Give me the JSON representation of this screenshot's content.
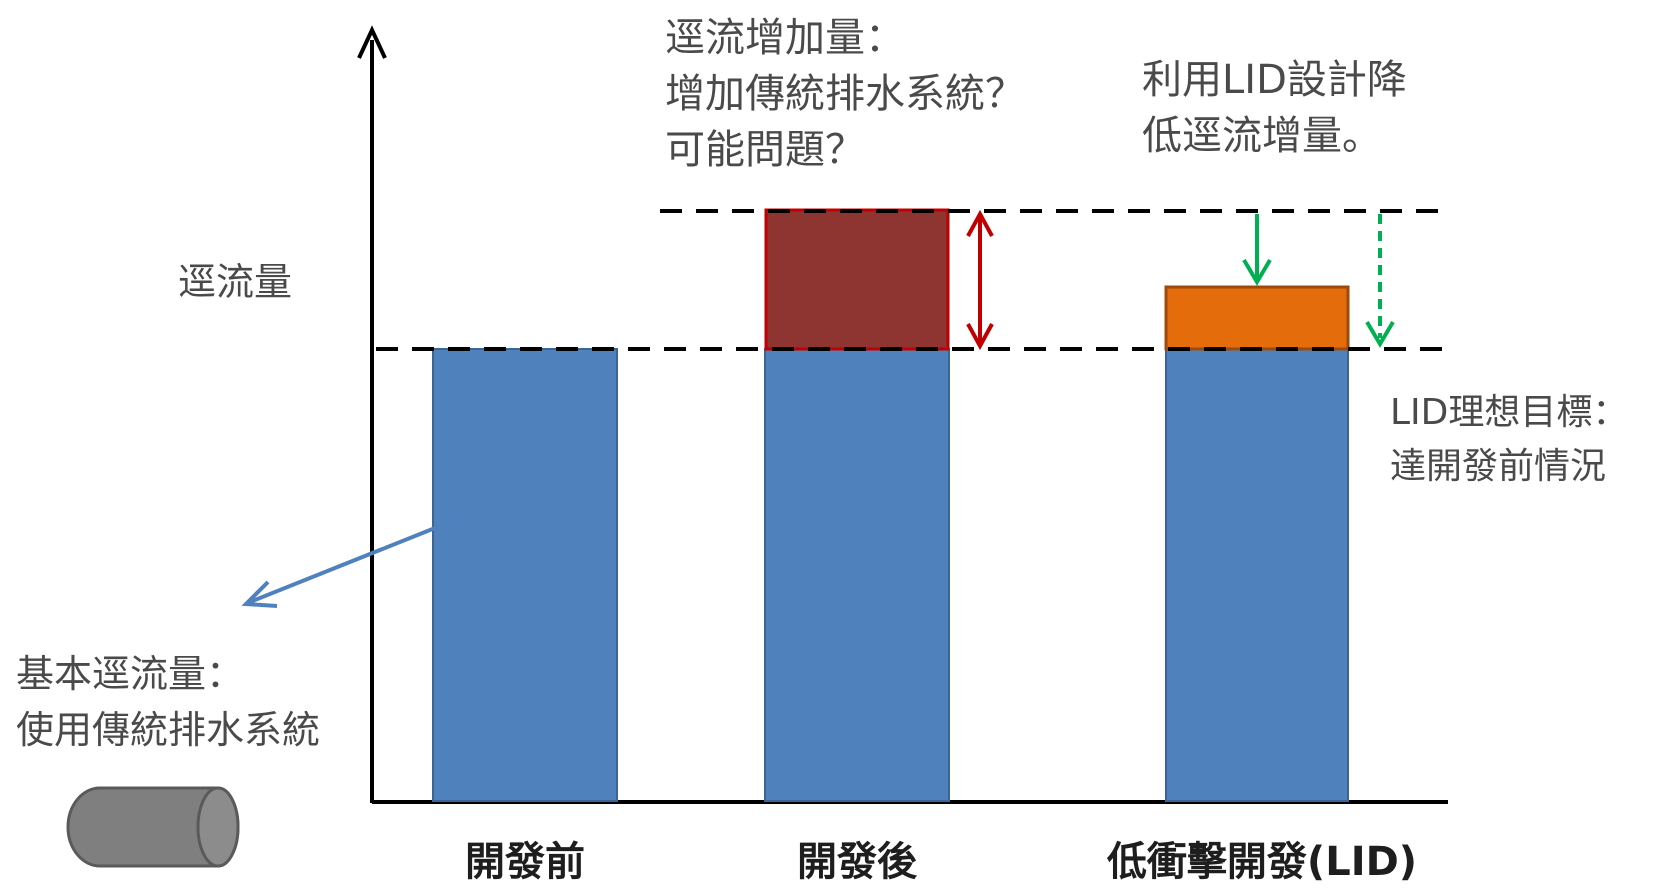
{
  "y_axis_label": "逕流量",
  "columns": [
    {
      "label": "開發前",
      "segments": [
        {
          "color": "#4f81bd",
          "role": "基本逕流量"
        }
      ]
    },
    {
      "label": "開發後",
      "segments": [
        {
          "color": "#4f81bd",
          "role": "基本逕流量"
        },
        {
          "color": "#8e3431",
          "role": "逕流增加量"
        }
      ]
    },
    {
      "label": "低衝擊開發(LID)",
      "segments": [
        {
          "color": "#4f81bd",
          "role": "基本逕流量"
        },
        {
          "color": "#e46c0a",
          "role": "利用LID設計降低逕流增量"
        }
      ]
    }
  ],
  "annotations": {
    "increase": {
      "lines": [
        "逕流增加量：",
        "增加傳統排水系統？",
        "可能問題？"
      ]
    },
    "lid_reduce": {
      "lines": [
        "利用LID設計降",
        "低逕流增量。"
      ]
    },
    "lid_goal": {
      "lines": [
        "LID理想目標：",
        "達開發前情況"
      ]
    },
    "base": {
      "lines": [
        "基本逕流量：",
        "使用傳統排水系統"
      ]
    }
  },
  "icons": [
    "pipe-icon"
  ],
  "colors": {
    "base_bar": "#4f81bd",
    "increase_bar": "#8e3431",
    "increase_border": "#c00000",
    "lid_bar": "#e46c0a",
    "lid_border": "#9c4a0e",
    "increase_arrow": "#c00000",
    "lid_arrow": "#00b050",
    "pointer_arrow": "#4f81bd",
    "pipe": "#7f7f7f"
  }
}
